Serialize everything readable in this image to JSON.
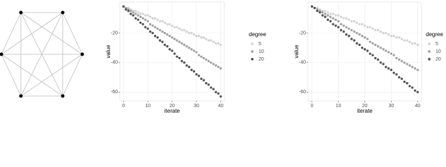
{
  "chart_data": [
    {
      "type": "scatter",
      "xlabel": "iterate",
      "ylabel": "value",
      "legend_title": "degree",
      "x": [
        0,
        1,
        2,
        3,
        4,
        5,
        6,
        7,
        8,
        9,
        10,
        11,
        12,
        13,
        14,
        15,
        16,
        17,
        18,
        19,
        20,
        21,
        22,
        23,
        24,
        25,
        26,
        27,
        28,
        29,
        30,
        31,
        32,
        33,
        34,
        35,
        36,
        37,
        38,
        39,
        40
      ],
      "xlim": [
        -1.5,
        41.5
      ],
      "xticks": [
        0,
        10,
        20,
        30,
        40
      ],
      "ylim": [
        -66,
        1
      ],
      "yticks": [
        -20,
        -40,
        -60
      ],
      "grid": true,
      "series": [
        {
          "name": "5",
          "color": "#d4d4d4",
          "values": [
            -2,
            -3,
            -3,
            -4,
            -5,
            -5,
            -6,
            -7,
            -7,
            -8,
            -8,
            -9,
            -10,
            -10,
            -11,
            -12,
            -12,
            -13,
            -14,
            -14,
            -15,
            -16,
            -16,
            -17,
            -18,
            -18,
            -19,
            -20,
            -20,
            -21,
            -22,
            -22,
            -23,
            -23,
            -24,
            -25,
            -25,
            -26,
            -27,
            -27,
            -28
          ]
        },
        {
          "name": "10",
          "color": "#a3a3a3",
          "values": [
            -2,
            -3,
            -4,
            -5,
            -6,
            -7,
            -8,
            -9,
            -10,
            -11,
            -12,
            -14,
            -15,
            -16,
            -17,
            -18,
            -19,
            -20,
            -21,
            -22,
            -23,
            -24,
            -25,
            -26,
            -27,
            -28,
            -29,
            -30,
            -31,
            -32,
            -33,
            -35,
            -36,
            -37,
            -38,
            -39,
            -40,
            -41,
            -42,
            -43,
            -44
          ]
        },
        {
          "name": "20",
          "color": "#555555",
          "values": [
            -2,
            -4,
            -5,
            -7,
            -8,
            -10,
            -11,
            -13,
            -14,
            -16,
            -17,
            -19,
            -20,
            -22,
            -23,
            -25,
            -26,
            -28,
            -29,
            -31,
            -32,
            -34,
            -36,
            -37,
            -39,
            -40,
            -42,
            -43,
            -45,
            -46,
            -48,
            -49,
            -51,
            -52,
            -54,
            -55,
            -57,
            -58,
            -60,
            -61,
            -63
          ]
        }
      ]
    },
    {
      "type": "scatter",
      "xlabel": "iterate",
      "ylabel": "value",
      "legend_title": "degree",
      "x": [
        0,
        1,
        2,
        3,
        4,
        5,
        6,
        7,
        8,
        9,
        10,
        11,
        12,
        13,
        14,
        15,
        16,
        17,
        18,
        19,
        20,
        21,
        22,
        23,
        24,
        25,
        26,
        27,
        28,
        29,
        30,
        31,
        32,
        33,
        34,
        35,
        36,
        37,
        38,
        39,
        40
      ],
      "xlim": [
        -1.5,
        41.5
      ],
      "xticks": [
        0,
        10,
        20,
        30,
        40
      ],
      "ylim": [
        -66,
        1
      ],
      "yticks": [
        -20,
        -40,
        -60
      ],
      "grid": true,
      "series": [
        {
          "name": "5",
          "color": "#d4d4d4",
          "values": [
            -2,
            -3,
            -3,
            -4,
            -5,
            -5,
            -6,
            -7,
            -7,
            -8,
            -8,
            -9,
            -10,
            -10,
            -11,
            -12,
            -12,
            -13,
            -14,
            -14,
            -15,
            -16,
            -16,
            -17,
            -18,
            -18,
            -19,
            -20,
            -20,
            -21,
            -22,
            -22,
            -23,
            -23,
            -24,
            -25,
            -25,
            -26,
            -27,
            -27,
            -28
          ]
        },
        {
          "name": "10",
          "color": "#a3a3a3",
          "values": [
            -2,
            -3,
            -4,
            -5,
            -6,
            -7,
            -8,
            -9,
            -10,
            -11,
            -12,
            -14,
            -15,
            -16,
            -17,
            -18,
            -19,
            -20,
            -21,
            -22,
            -23,
            -24,
            -26,
            -27,
            -28,
            -29,
            -30,
            -31,
            -32,
            -33,
            -34,
            -35,
            -37,
            -38,
            -39,
            -40,
            -41,
            -42,
            -43,
            -44,
            -45
          ]
        },
        {
          "name": "20",
          "color": "#555555",
          "values": [
            -2,
            -3,
            -5,
            -6,
            -8,
            -9,
            -11,
            -12,
            -14,
            -15,
            -16,
            -18,
            -19,
            -21,
            -22,
            -24,
            -25,
            -27,
            -28,
            -30,
            -31,
            -32,
            -34,
            -35,
            -37,
            -38,
            -40,
            -41,
            -43,
            -44,
            -45,
            -47,
            -48,
            -50,
            -51,
            -53,
            -54,
            -56,
            -57,
            -59,
            -60
          ]
        }
      ]
    }
  ]
}
